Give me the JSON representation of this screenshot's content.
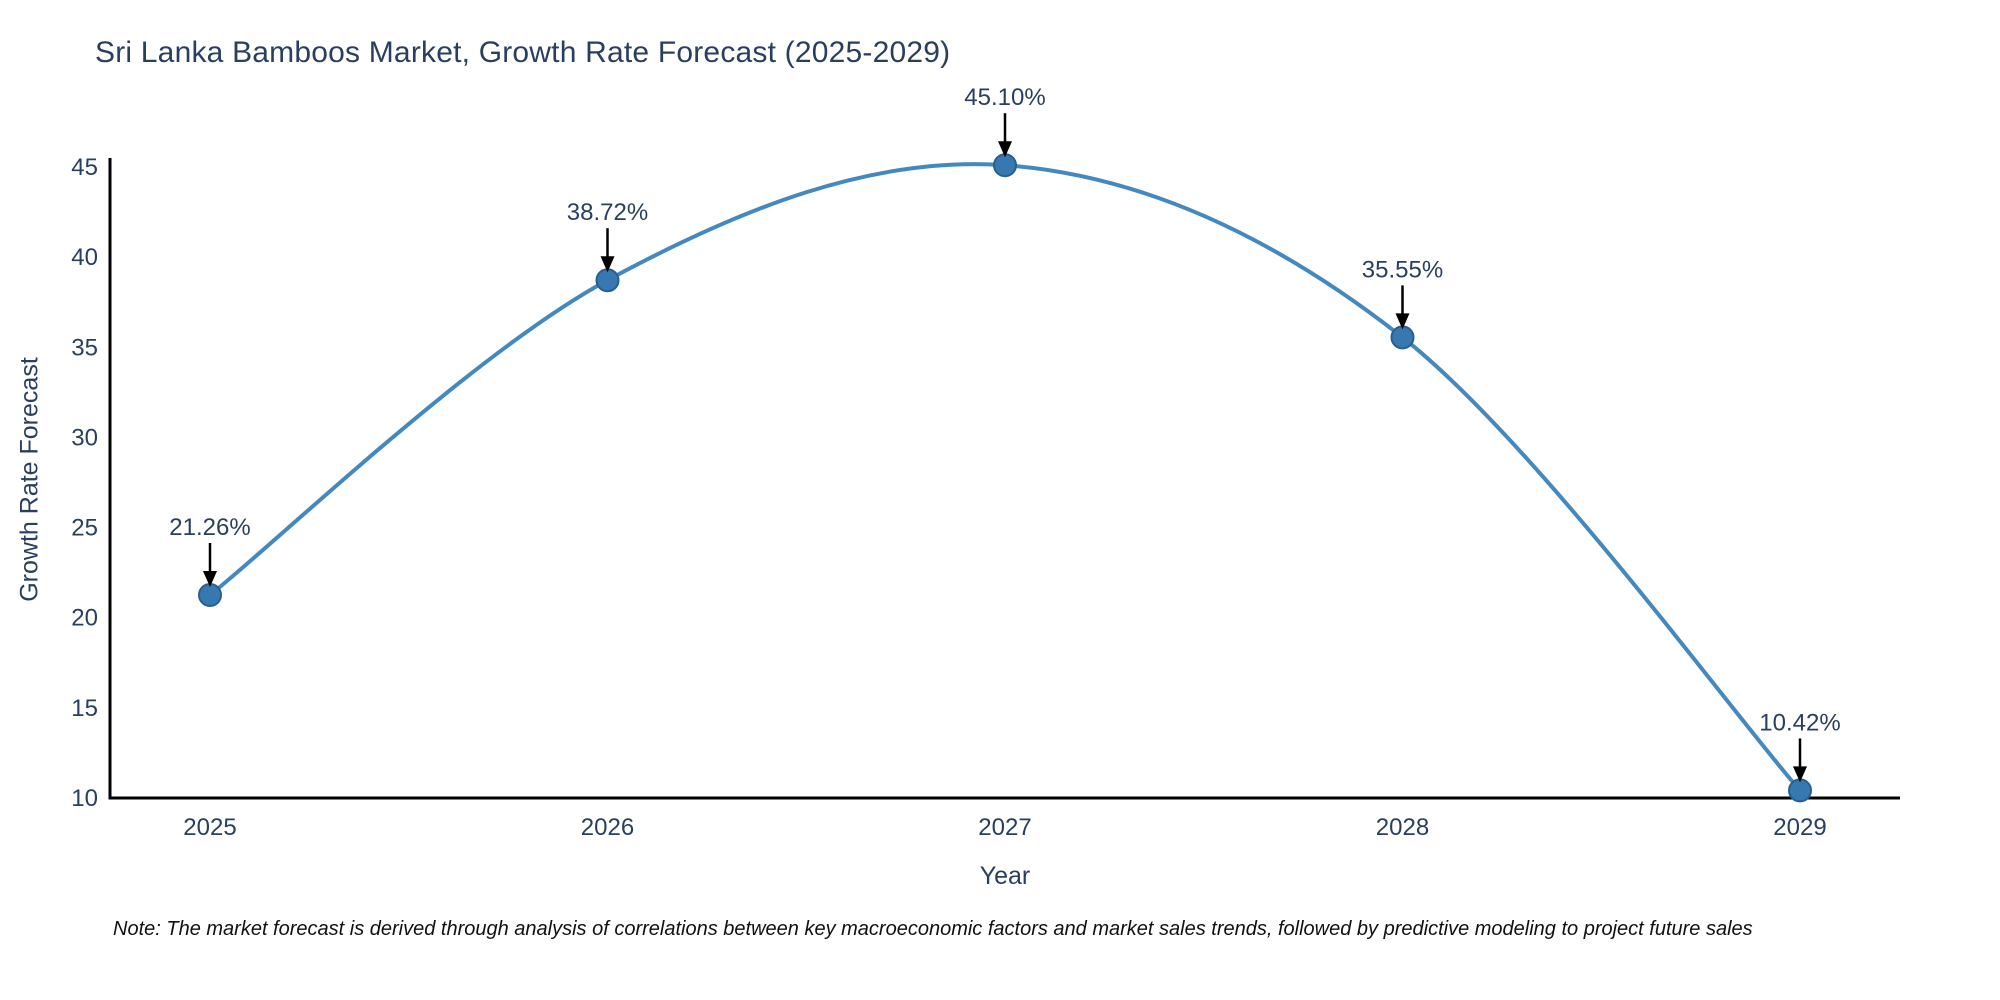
{
  "title": "Sri Lanka Bamboos Market, Growth Rate Forecast (2025-2029)",
  "note": "Note: The market forecast is derived through analysis of correlations between key macroeconomic factors and market sales trends, followed by predictive modeling to project future sales",
  "chart_data": {
    "type": "line",
    "line_shape": "spline",
    "title": "Sri Lanka Bamboos Market, Growth Rate Forecast (2025-2029)",
    "xlabel": "Year",
    "ylabel": "Growth Rate Forecast",
    "categories": [
      "2025",
      "2026",
      "2027",
      "2028",
      "2029"
    ],
    "series": [
      {
        "name": "Growth Rate Forecast",
        "values": [
          21.26,
          38.72,
          45.1,
          35.55,
          10.42
        ]
      }
    ],
    "point_labels": [
      "21.26%",
      "38.72%",
      "45.10%",
      "35.55%",
      "10.42%"
    ],
    "ylim": [
      10,
      45
    ],
    "yticks": [
      10,
      15,
      20,
      25,
      30,
      35,
      40,
      45
    ],
    "grid": false,
    "legend": "none",
    "colors": {
      "line": "#4389c0",
      "marker_fill": "#3878b0",
      "marker_border": "#275f8e",
      "axis_line": "#000000",
      "tick_text": "#2a3f5f",
      "annotation_text": "#2a3f5f",
      "annotation_arrow": "#000000"
    }
  }
}
